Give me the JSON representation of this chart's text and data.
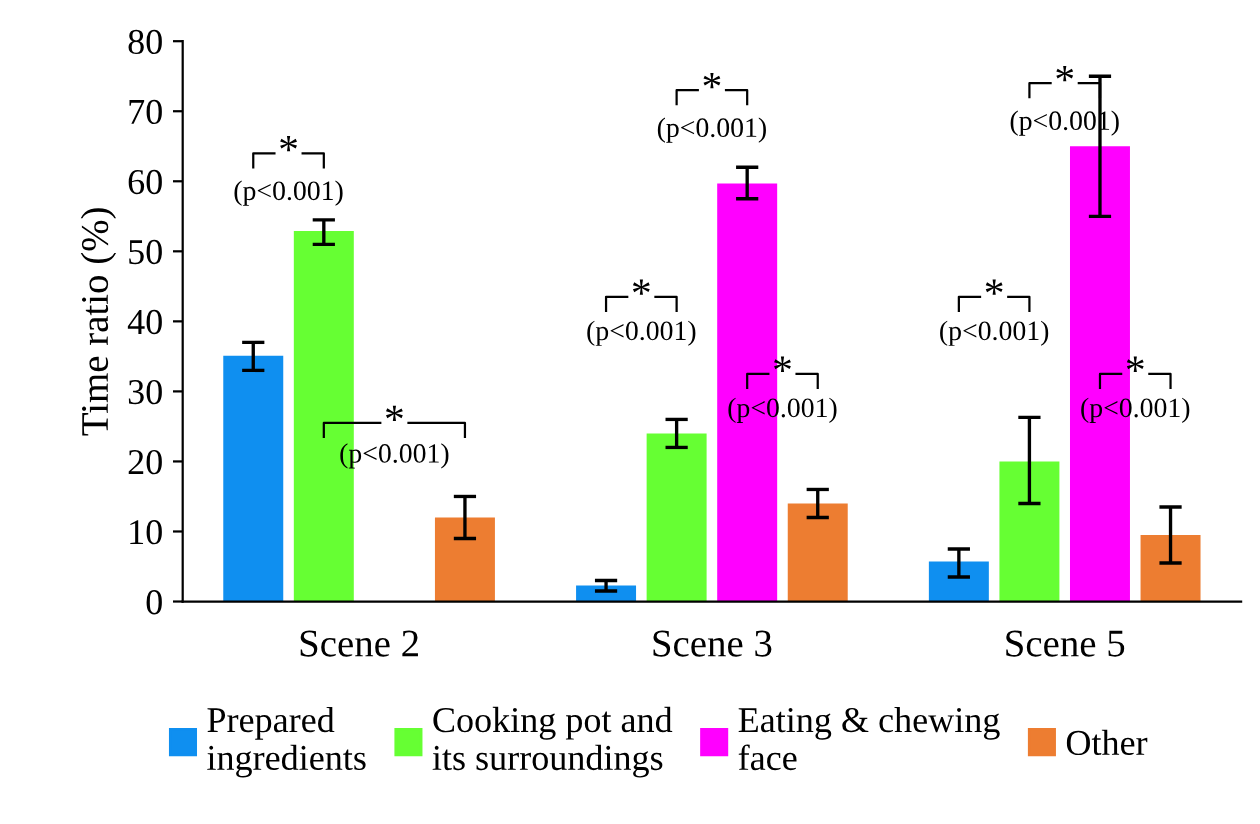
{
  "chart_data": {
    "type": "bar",
    "ylabel": "Time ratio (%)",
    "categories": [
      "Scene 2",
      "Scene 3",
      "Scene 5"
    ],
    "series": [
      {
        "name": "Prepared\ningredients",
        "color": "#0f8ff0",
        "values": [
          35.1,
          2.3,
          5.7
        ],
        "errors": [
          [
            33,
            37
          ],
          [
            1.5,
            3
          ],
          [
            3.5,
            7.5
          ]
        ]
      },
      {
        "name": "Cooking pot and\nits surroundings",
        "color": "#66ff33",
        "values": [
          52.9,
          24,
          20
        ],
        "errors": [
          [
            51,
            54.5
          ],
          [
            22,
            26
          ],
          [
            14,
            26.3
          ]
        ]
      },
      {
        "name": "Eating & chewing\nface",
        "color": "#ff00ff",
        "values": [
          null,
          59.7,
          65
        ],
        "errors": [
          null,
          [
            57.5,
            62
          ],
          [
            55,
            75
          ]
        ]
      },
      {
        "name": "Other",
        "color": "#ed7d31",
        "values": [
          12,
          14,
          9.5
        ],
        "errors": [
          [
            9,
            15
          ],
          [
            12,
            16
          ],
          [
            5.5,
            13.5
          ]
        ]
      }
    ],
    "ylim": [
      0,
      80
    ],
    "yticks": [
      0,
      10,
      20,
      30,
      40,
      50,
      60,
      70,
      80
    ],
    "grid": false,
    "legend": "bottom",
    "annotations": [
      "*",
      "(p<0.001)",
      "*",
      "(p<0.001)",
      "*",
      "(p<0.001)",
      "*",
      "(p<0.001)",
      "*",
      "(p<0.001)",
      "*",
      "(p<0.001)",
      "*",
      "(p<0.001)",
      "*",
      "(p<0.001)"
    ]
  }
}
